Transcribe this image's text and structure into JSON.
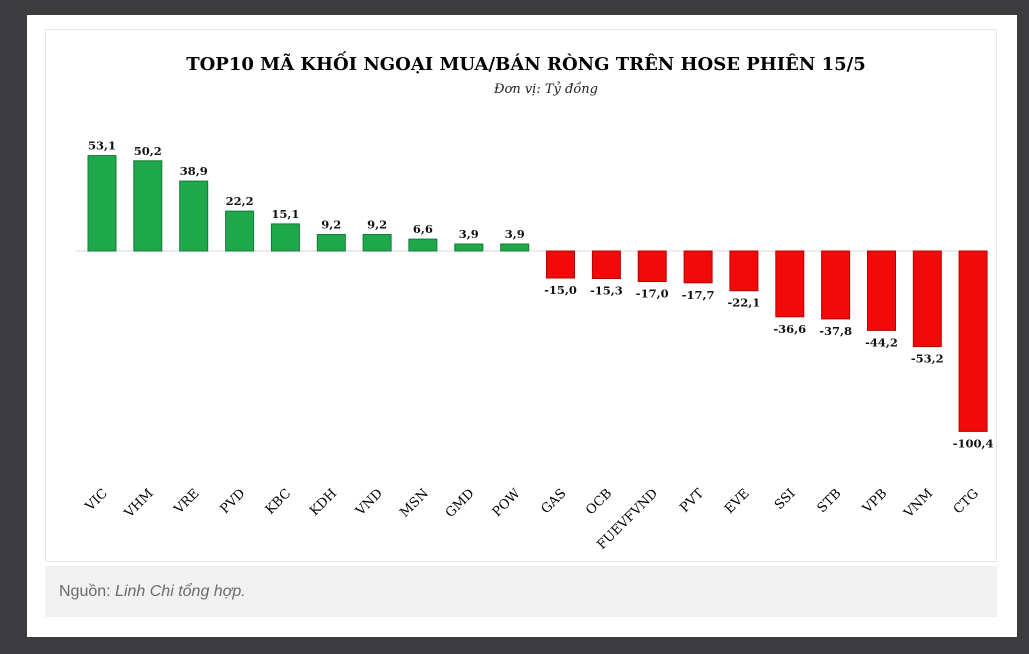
{
  "caption": {
    "prefix": "Nguồn: ",
    "source": "Linh Chi tổng hợp."
  },
  "colors": {
    "positive": "#1fa84a",
    "positive_stroke": "#13793a",
    "negative": "#f20a0a",
    "negative_stroke": "#b80000",
    "page_background": "#3c3c3e"
  },
  "chart_data": {
    "type": "bar",
    "title": "TOP10 MÃ KHỐI NGOẠI MUA/BÁN RÒNG TRÊN HOSE PHIÊN 15/5",
    "subtitle": "Đơn vị: Tỷ đồng",
    "xlabel": "",
    "ylabel": "",
    "grid": false,
    "legend": "none",
    "ylim": [
      -105,
      58
    ],
    "categories": [
      "VIC",
      "VHM",
      "VRE",
      "PVD",
      "KBC",
      "KDH",
      "VND",
      "MSN",
      "GMD",
      "POW",
      "GAS",
      "OCB",
      "FUEVFVND",
      "PVT",
      "EVE",
      "SSI",
      "STB",
      "VPB",
      "VNM",
      "CTG"
    ],
    "values": [
      53.1,
      50.2,
      38.9,
      22.2,
      15.1,
      9.2,
      9.2,
      6.6,
      3.9,
      3.9,
      -15.0,
      -15.3,
      -17.0,
      -17.7,
      -22.1,
      -36.6,
      -37.8,
      -44.2,
      -53.2,
      -100.4
    ],
    "value_labels": [
      "53,1",
      "50,2",
      "38,9",
      "22,2",
      "15,1",
      "9,2",
      "9,2",
      "6,6",
      "3,9",
      "3,9",
      "-15,0",
      "-15,3",
      "-17,0",
      "-17,7",
      "-22,1",
      "-36,6",
      "-37,8",
      "-44,2",
      "-53,2",
      "-100,4"
    ]
  }
}
